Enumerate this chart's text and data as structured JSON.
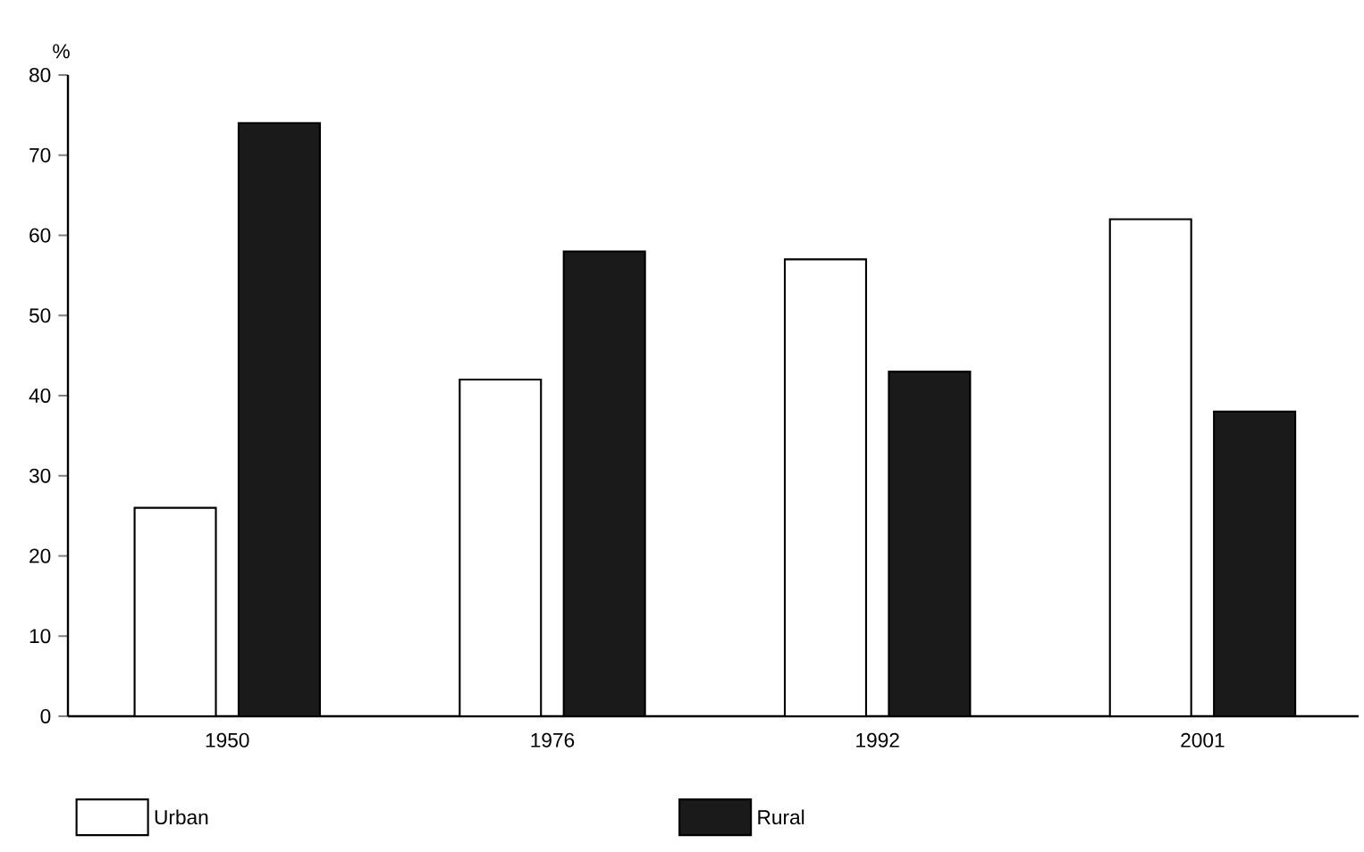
{
  "chart_data": {
    "type": "bar",
    "ylabel": "%",
    "categories": [
      "1950",
      "1976",
      "1992",
      "2001"
    ],
    "series": [
      {
        "name": "Urban",
        "color": "#ffffff",
        "values": [
          26,
          42,
          57,
          62
        ]
      },
      {
        "name": "Rural",
        "color": "#1a1a1a",
        "values": [
          74,
          58,
          43,
          38
        ]
      }
    ],
    "ylim": [
      0,
      80
    ],
    "yticks": [
      0,
      10,
      20,
      30,
      40,
      50,
      60,
      70,
      80
    ],
    "grid": false,
    "legend": "bottom"
  }
}
